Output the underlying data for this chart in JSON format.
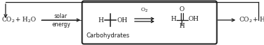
{
  "fig_width": 3.78,
  "fig_height": 0.65,
  "dpi": 100,
  "bg_color": "#ffffff",
  "text_color": "#1a1a1a",
  "box_color": "#1a1a1a",
  "arrow_label_top": "solar",
  "arrow_label_bot": "energy",
  "box_label": "Carbohydrates",
  "font_size": 6.5,
  "small_font": 5.5
}
